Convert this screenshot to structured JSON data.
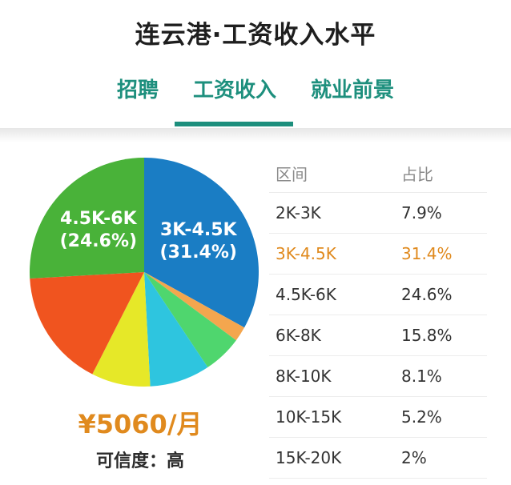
{
  "header": {
    "title": "连云港·工资收入水平",
    "tabs": [
      {
        "label": "招聘",
        "active": false
      },
      {
        "label": "工资收入",
        "active": true
      },
      {
        "label": "就业前景",
        "active": false
      }
    ]
  },
  "colors": {
    "accent": "#1d8f7d",
    "highlight": "#e08a1e"
  },
  "summary": {
    "average_salary": "¥5060/月",
    "confidence": "可信度：高"
  },
  "table": {
    "headers": [
      "区间",
      "占比"
    ],
    "rows": [
      {
        "range": "2K-3K",
        "share": "7.9%"
      },
      {
        "range": "3K-4.5K",
        "share": "31.4%",
        "highlighted": true
      },
      {
        "range": "4.5K-6K",
        "share": "24.6%"
      },
      {
        "range": "6K-8K",
        "share": "15.8%"
      },
      {
        "range": "8K-10K",
        "share": "8.1%"
      },
      {
        "range": "10K-15K",
        "share": "5.2%"
      },
      {
        "range": "15K-20K",
        "share": "2%"
      }
    ]
  },
  "chart_data": {
    "type": "pie",
    "labels": [
      "3K-4.5K",
      "15K-20K",
      "10K-15K",
      "8K-10K",
      "2K-3K",
      "6K-8K",
      "4.5K-6K"
    ],
    "values": [
      31.4,
      2,
      5.2,
      8.1,
      7.9,
      15.8,
      24.6
    ],
    "colors": [
      "#1a7dc4",
      "#f4a64e",
      "#4fd66e",
      "#2ec5df",
      "#e6e828",
      "#f0541f",
      "#49b239"
    ],
    "slice_labels": [
      {
        "line1": "3K-4.5K",
        "line2": "(31.4%)"
      },
      null,
      null,
      null,
      null,
      null,
      {
        "line1": "4.5K-6K",
        "line2": "(24.6%)"
      }
    ]
  }
}
